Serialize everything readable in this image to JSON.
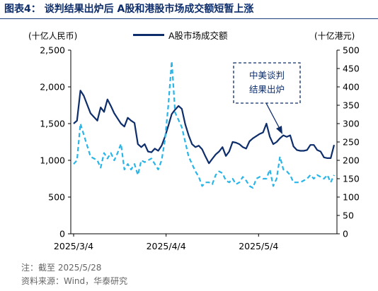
{
  "header": {
    "title": "图表4：  谈判结果出炉后 A股和港股市场成交额短暂上涨"
  },
  "chart_data": {
    "type": "line",
    "title": "图表4：  谈判结果出炉后 A股和港股市场成交额短暂上涨",
    "y_left_label": "(十亿人民币)",
    "y_right_label": "(十亿港元)",
    "y_left_lim": [
      0,
      2500
    ],
    "y_right_lim": [
      0,
      500
    ],
    "y_left_ticks": [
      "0",
      "500",
      "1,000",
      "1,500",
      "2,000",
      "2,500"
    ],
    "y_right_ticks": [
      "0",
      "50",
      "100",
      "150",
      "200",
      "250",
      "300",
      "350",
      "400",
      "450",
      "500"
    ],
    "x_tick_labels": [
      "2025/3/4",
      "2025/4/4",
      "2025/5/4"
    ],
    "legend_position": "top-center",
    "grid": false,
    "annotation": "中美谈判结果出炉",
    "colors": {
      "a_share": "#0d2d6b",
      "hk": "#29b5e8"
    },
    "series": [
      {
        "name": "A股市场成交额",
        "axis": "left",
        "style": "solid",
        "values": [
          1500,
          1540,
          1950,
          1880,
          1760,
          1640,
          1590,
          1540,
          1720,
          1660,
          1830,
          1740,
          1640,
          1570,
          1500,
          1460,
          1580,
          1540,
          1510,
          1220,
          1180,
          1220,
          1120,
          1110,
          1160,
          1130,
          1200,
          1320,
          1470,
          1630,
          1690,
          1740,
          1700,
          1490,
          1340,
          1220,
          1180,
          1200,
          1150,
          1050,
          960,
          1020,
          1080,
          1120,
          1180,
          1060,
          1120,
          1250,
          1240,
          1220,
          1180,
          1160,
          1260,
          1300,
          1330,
          1360,
          1380,
          1500,
          1320,
          1220,
          1250,
          1300,
          1340,
          1320,
          1340,
          1190,
          1140,
          1130,
          1130,
          1140,
          1210,
          1210,
          1140,
          1120,
          1040,
          1030,
          1030,
          1210
        ]
      },
      {
        "name": "港股市场成交额",
        "axis": "right",
        "style": "dashed",
        "values": [
          190,
          200,
          300,
          270,
          240,
          210,
          205,
          200,
          180,
          220,
          205,
          220,
          200,
          220,
          245,
          175,
          190,
          175,
          190,
          160,
          200,
          195,
          200,
          205,
          190,
          175,
          200,
          255,
          350,
          470,
          330,
          310,
          290,
          250,
          210,
          190,
          170,
          155,
          130,
          140,
          140,
          135,
          160,
          170,
          165,
          145,
          140,
          150,
          135,
          140,
          155,
          145,
          130,
          125,
          150,
          155,
          150,
          150,
          175,
          130,
          150,
          210,
          175,
          170,
          160,
          140,
          140,
          140,
          145,
          150,
          160,
          150,
          160,
          155,
          150,
          160,
          140,
          160
        ]
      }
    ]
  },
  "footnotes": {
    "note": "注：截至 2025/5/28",
    "source": "资料来源：Wind，华泰研究"
  }
}
